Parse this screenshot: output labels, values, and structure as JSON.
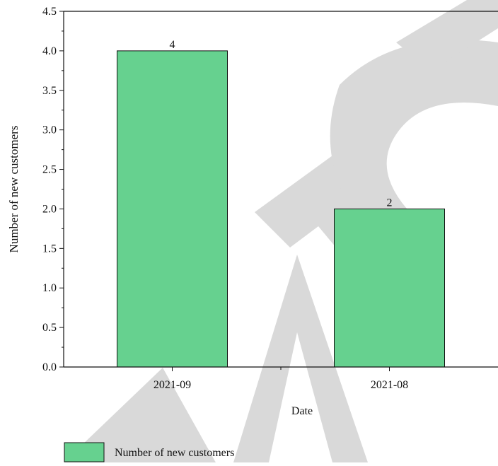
{
  "watermark": {
    "text": "RETRACTED",
    "color": "#d9d9d9"
  },
  "chart_data": {
    "type": "bar",
    "categories": [
      "2021-09",
      "2021-08"
    ],
    "series": [
      {
        "name": "Number of new customers",
        "values": [
          4,
          2
        ],
        "color": "#66d18f"
      }
    ],
    "data_labels": [
      "4",
      "2"
    ],
    "xlabel": "Date",
    "ylabel": "Number of new customers",
    "ylim": [
      0,
      4.5
    ],
    "yticks": [
      "0.0",
      "0.5",
      "1.0",
      "1.5",
      "2.0",
      "2.5",
      "3.0",
      "3.5",
      "4.0",
      "4.5"
    ],
    "grid": false,
    "legend_position": "bottom-left",
    "legend_entries": [
      "Number of new customers"
    ]
  }
}
